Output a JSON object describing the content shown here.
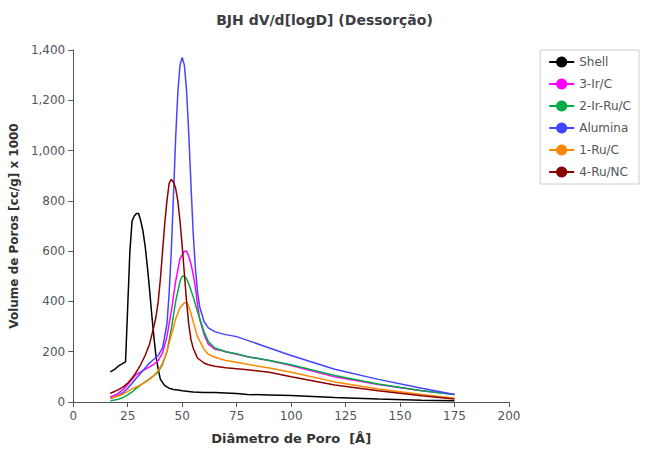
{
  "chart_data": {
    "type": "line",
    "title": "BJH dV/d[logD] (Dessorção)",
    "xlabel": "Diâmetro de Poro  [Å]",
    "ylabel": "Volume de Poros [cc/g] x 1000",
    "xlim": [
      0,
      200
    ],
    "ylim": [
      0,
      1400
    ],
    "xticks": [
      0,
      25,
      50,
      75,
      100,
      125,
      150,
      175,
      200
    ],
    "yticks": [
      0,
      200,
      400,
      600,
      800,
      1000,
      1200,
      1400
    ],
    "grid": false,
    "legend": "right",
    "series": [
      {
        "name": "Shell",
        "color": "#000000",
        "x": [
          17,
          19,
          21,
          23,
          24,
          25,
          26,
          27,
          28,
          29,
          30,
          31,
          32,
          33,
          34,
          35,
          36,
          37,
          38,
          39,
          40,
          42,
          44,
          46,
          48,
          50,
          55,
          60,
          65,
          70,
          75,
          80,
          90,
          100,
          120,
          140,
          160,
          175
        ],
        "values": [
          120,
          130,
          145,
          155,
          160,
          380,
          600,
          720,
          740,
          750,
          750,
          720,
          680,
          620,
          540,
          450,
          350,
          260,
          180,
          130,
          90,
          65,
          55,
          50,
          48,
          45,
          40,
          38,
          38,
          36,
          34,
          30,
          28,
          26,
          18,
          12,
          7,
          5
        ]
      },
      {
        "name": "3-Ir/C",
        "color": "#ff00ff",
        "x": [
          17,
          20,
          23,
          25,
          27,
          29,
          31,
          33,
          35,
          37,
          39,
          41,
          43,
          45,
          47,
          49,
          51,
          52,
          53,
          54,
          55,
          56,
          57,
          58,
          60,
          62,
          65,
          68,
          70,
          75,
          80,
          90,
          100,
          120,
          140,
          160,
          175
        ],
        "values": [
          20,
          30,
          50,
          70,
          90,
          110,
          120,
          130,
          140,
          150,
          165,
          195,
          260,
          360,
          480,
          570,
          600,
          600,
          580,
          550,
          510,
          460,
          390,
          330,
          270,
          230,
          210,
          205,
          200,
          190,
          180,
          165,
          145,
          100,
          70,
          45,
          30
        ]
      },
      {
        "name": "2-Ir-Ru/C",
        "color": "#00aa44",
        "x": [
          17,
          19,
          21,
          23,
          25,
          27,
          29,
          31,
          33,
          35,
          37,
          39,
          41,
          43,
          45,
          47,
          49,
          50,
          51,
          52,
          53,
          55,
          57,
          60,
          62,
          65,
          70,
          75,
          80,
          90,
          100,
          120,
          140,
          160,
          175
        ],
        "values": [
          5,
          8,
          12,
          18,
          28,
          40,
          55,
          68,
          80,
          92,
          105,
          120,
          150,
          200,
          290,
          400,
          480,
          500,
          500,
          490,
          470,
          420,
          360,
          280,
          240,
          215,
          200,
          192,
          180,
          165,
          148,
          105,
          72,
          45,
          30
        ]
      },
      {
        "name": "Alumina",
        "color": "#4444ff",
        "x": [
          17,
          19,
          21,
          23,
          25,
          27,
          29,
          31,
          33,
          35,
          37,
          39,
          41,
          43,
          44,
          45,
          46,
          47,
          48,
          49,
          50,
          51,
          52,
          53,
          54,
          55,
          56,
          57,
          58,
          60,
          62,
          65,
          68,
          70,
          75,
          80,
          90,
          100,
          120,
          140,
          160,
          175
        ],
        "values": [
          15,
          20,
          28,
          38,
          55,
          75,
          95,
          115,
          135,
          155,
          170,
          185,
          215,
          310,
          430,
          600,
          820,
          1050,
          1230,
          1340,
          1370,
          1340,
          1240,
          1070,
          870,
          680,
          540,
          440,
          380,
          320,
          295,
          280,
          272,
          268,
          260,
          245,
          215,
          185,
          130,
          90,
          55,
          30
        ]
      },
      {
        "name": "1-Ru/C",
        "color": "#ff8800",
        "x": [
          17,
          19,
          21,
          23,
          25,
          27,
          29,
          31,
          33,
          35,
          37,
          39,
          41,
          43,
          45,
          47,
          49,
          51,
          52,
          53,
          54,
          55,
          57,
          60,
          62,
          65,
          70,
          75,
          80,
          90,
          100,
          120,
          140,
          160,
          175
        ],
        "values": [
          15,
          20,
          25,
          32,
          42,
          52,
          60,
          68,
          78,
          90,
          105,
          125,
          155,
          200,
          265,
          330,
          375,
          395,
          395,
          380,
          355,
          320,
          260,
          210,
          190,
          178,
          165,
          158,
          150,
          135,
          118,
          80,
          52,
          30,
          15
        ]
      },
      {
        "name": "4-Ru/NC",
        "color": "#8b0000",
        "x": [
          17,
          19,
          21,
          23,
          25,
          27,
          29,
          31,
          33,
          35,
          37,
          38,
          39,
          40,
          41,
          42,
          43,
          44,
          45,
          46,
          47,
          48,
          49,
          50,
          51,
          52,
          53,
          54,
          55,
          57,
          60,
          62,
          65,
          70,
          75,
          80,
          90,
          100,
          120,
          140,
          160,
          175
        ],
        "values": [
          35,
          42,
          50,
          60,
          75,
          95,
          120,
          150,
          185,
          230,
          300,
          340,
          400,
          490,
          600,
          710,
          800,
          870,
          885,
          875,
          850,
          800,
          720,
          620,
          510,
          400,
          310,
          250,
          215,
          175,
          155,
          148,
          142,
          136,
          132,
          128,
          118,
          100,
          68,
          45,
          25,
          12
        ]
      }
    ]
  }
}
